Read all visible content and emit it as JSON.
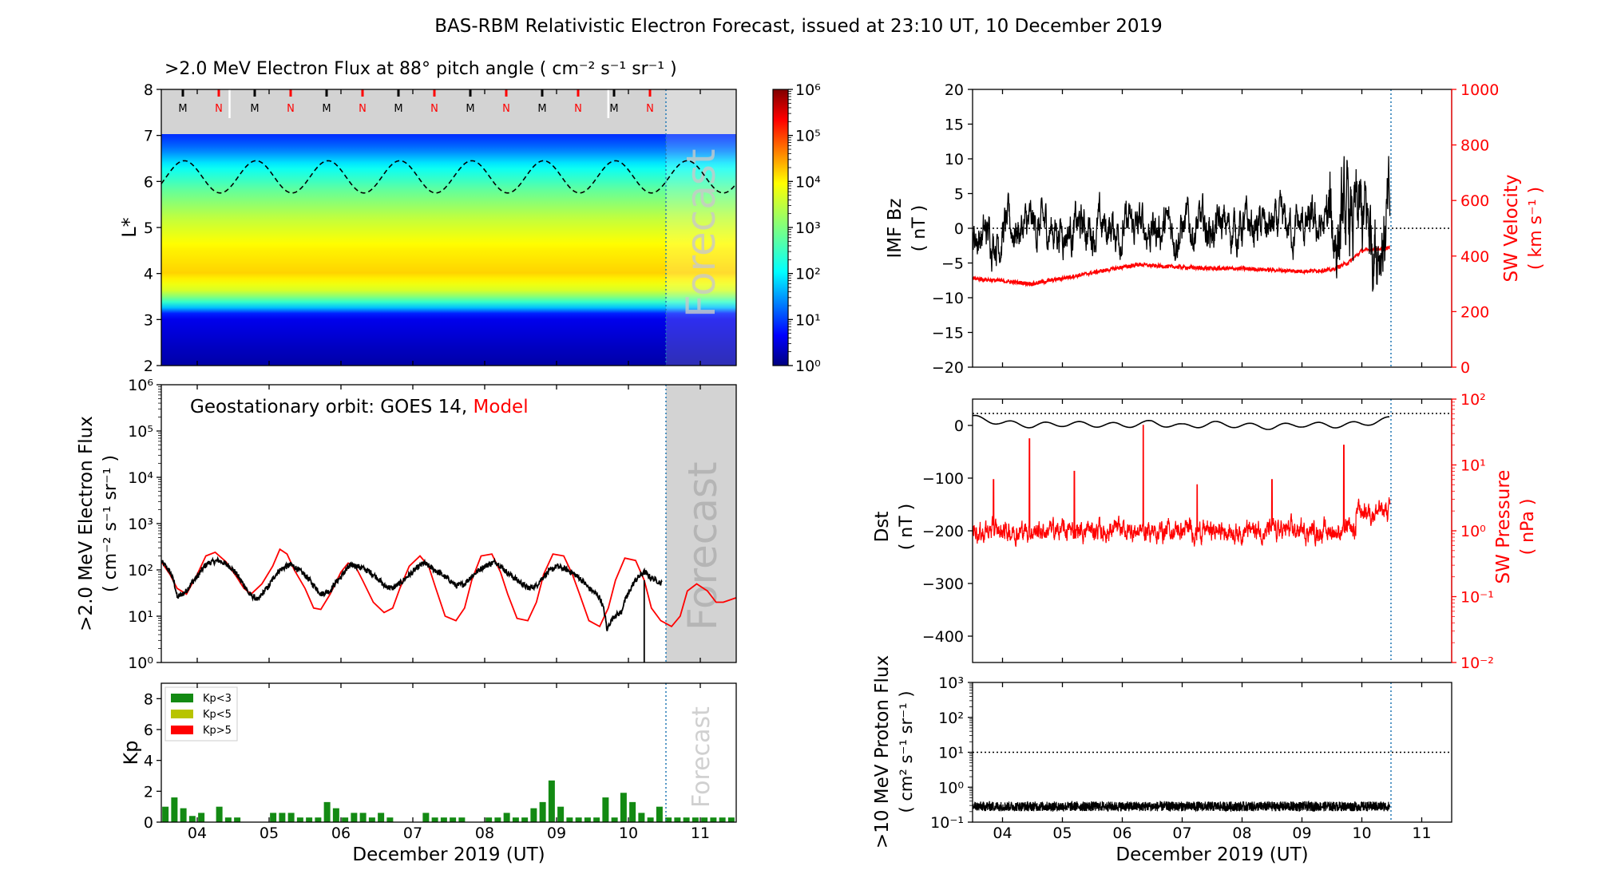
{
  "figure_title": "BAS-RBM Relativistic Electron Forecast, issued at 23:10 UT, 10 December 2019",
  "colors": {
    "red": "#ff0000",
    "black": "#000000",
    "green": "#138a13",
    "olive": "#b8c400",
    "grey": "#d3d3d3",
    "vline": "#1f77b4"
  },
  "chart_data": [
    {
      "id": "flux_map",
      "type": "heatmap",
      "title": ">2.0 MeV Electron Flux at 88° pitch angle ( cm⁻² s⁻¹ sr⁻¹ )",
      "ylabel": "L*",
      "xlim": [
        3.5,
        11.5
      ],
      "ylim": [
        2,
        8
      ],
      "yticks": [
        "2",
        "3",
        "4",
        "5",
        "6",
        "7",
        "8"
      ],
      "forecast_label": "Forecast",
      "forecast_start": 10.47,
      "colorbar_ticks": [
        "10⁰",
        "10¹",
        "10²",
        "10³",
        "10⁴",
        "10⁵",
        "10⁶"
      ],
      "orbit_markers": {
        "labels": [
          "M",
          "N",
          "M",
          "N",
          "M",
          "N",
          "M",
          "N",
          "M",
          "N",
          "M",
          "N",
          "M",
          "N"
        ],
        "x": [
          3.8,
          4.3,
          4.8,
          5.3,
          5.8,
          6.3,
          6.8,
          7.3,
          7.8,
          8.3,
          8.8,
          9.3,
          9.8,
          10.3
        ]
      },
      "flux_profile": {
        "L": [
          2.0,
          3.1,
          3.3,
          3.6,
          4.0,
          4.6,
          5.2,
          5.8,
          6.3,
          6.7,
          7.0
        ],
        "log_flux": [
          0.2,
          0.6,
          2.0,
          3.6,
          4.2,
          4.0,
          3.5,
          2.8,
          2.1,
          1.3,
          0.9
        ]
      },
      "dashed_line": {
        "name": "",
        "period_days": 1.0,
        "mean_L": 6.1,
        "amplitude": 0.35
      }
    },
    {
      "id": "geo_flux",
      "type": "line",
      "annotation_prefix": "Geostationary orbit:   GOES 14,",
      "annotation_model": "Model",
      "ylabel_lines": [
        ">2.0 MeV Electron Flux",
        "( cm⁻² s⁻¹ sr⁻¹ )"
      ],
      "yscale": "log",
      "ylim": [
        1,
        1000000
      ],
      "yticks": [
        "10⁰",
        "10¹",
        "10²",
        "10³",
        "10⁴",
        "10⁵",
        "10⁶"
      ],
      "xlim": [
        3.5,
        11.5
      ],
      "forecast_label": "Forecast",
      "series": [
        {
          "name": "GOES 14",
          "color": "#000000",
          "x": [
            3.5,
            3.62,
            3.72,
            3.85,
            4.0,
            4.15,
            4.3,
            4.45,
            4.6,
            4.72,
            4.85,
            5.0,
            5.15,
            5.3,
            5.45,
            5.6,
            5.72,
            5.85,
            6.0,
            6.15,
            6.3,
            6.45,
            6.6,
            6.72,
            6.85,
            7.0,
            7.15,
            7.3,
            7.45,
            7.6,
            7.72,
            7.85,
            8.0,
            8.15,
            8.3,
            8.45,
            8.6,
            8.72,
            8.85,
            9.0,
            9.15,
            9.3,
            9.45,
            9.6,
            9.7,
            9.8,
            9.9,
            10.0,
            10.1,
            10.22,
            10.3,
            10.47
          ],
          "y": [
            150,
            90,
            25,
            35,
            70,
            140,
            160,
            120,
            60,
            30,
            22,
            45,
            100,
            130,
            90,
            50,
            30,
            35,
            70,
            130,
            110,
            80,
            45,
            40,
            55,
            90,
            140,
            100,
            70,
            45,
            50,
            80,
            120,
            150,
            90,
            60,
            40,
            45,
            80,
            120,
            100,
            70,
            40,
            25,
            5,
            10,
            12,
            30,
            60,
            90,
            70,
            50
          ]
        },
        {
          "name": "Model",
          "color": "#ff0000",
          "x": [
            3.5,
            3.62,
            3.72,
            3.85,
            4.0,
            4.12,
            4.25,
            4.4,
            4.55,
            4.65,
            4.75,
            4.9,
            5.05,
            5.15,
            5.25,
            5.35,
            5.5,
            5.62,
            5.72,
            5.85,
            6.0,
            6.1,
            6.2,
            6.3,
            6.45,
            6.6,
            6.72,
            6.82,
            6.95,
            7.1,
            7.22,
            7.32,
            7.45,
            7.6,
            7.72,
            7.82,
            7.95,
            8.1,
            8.22,
            8.32,
            8.45,
            8.6,
            8.72,
            8.82,
            8.95,
            9.1,
            9.22,
            9.32,
            9.45,
            9.6,
            9.72,
            9.82,
            9.95,
            10.1,
            10.22,
            10.32,
            10.45,
            10.6,
            10.72,
            10.82,
            10.95,
            11.1,
            11.22,
            11.32,
            11.5
          ],
          "y": [
            150,
            80,
            40,
            30,
            80,
            200,
            240,
            150,
            70,
            40,
            30,
            50,
            120,
            280,
            220,
            100,
            40,
            15,
            14,
            30,
            90,
            140,
            120,
            60,
            20,
            12,
            15,
            40,
            120,
            200,
            120,
            40,
            10,
            8,
            15,
            60,
            200,
            220,
            90,
            30,
            9,
            8,
            20,
            80,
            220,
            200,
            80,
            30,
            8,
            6,
            15,
            60,
            180,
            160,
            60,
            15,
            8,
            6,
            10,
            35,
            50,
            35,
            20,
            20,
            25
          ]
        }
      ]
    },
    {
      "id": "kp",
      "type": "bar",
      "ylabel": "Kp",
      "ylim": [
        0,
        9
      ],
      "yticks": [
        "0",
        "2",
        "4",
        "6",
        "8"
      ],
      "xlim": [
        3.5,
        11.5
      ],
      "forecast_label": "Forecast",
      "legend": [
        "Kp<3",
        "Kp<5",
        "Kp>5"
      ],
      "legend_loc": "upper left",
      "bar_width_days": 0.1,
      "x": [
        3.5625,
        3.6875,
        3.8125,
        3.9375,
        4.0625,
        4.1875,
        4.3125,
        4.4375,
        4.5625,
        4.6875,
        4.8125,
        4.9375,
        5.0625,
        5.1875,
        5.3125,
        5.4375,
        5.5625,
        5.6875,
        5.8125,
        5.9375,
        6.0625,
        6.1875,
        6.3125,
        6.4375,
        6.5625,
        6.6875,
        6.8125,
        6.9375,
        7.0625,
        7.1875,
        7.3125,
        7.4375,
        7.5625,
        7.6875,
        7.8125,
        7.9375,
        8.0625,
        8.1875,
        8.3125,
        8.4375,
        8.5625,
        8.6875,
        8.8125,
        8.9375,
        9.0625,
        9.1875,
        9.3125,
        9.4375,
        9.5625,
        9.6875,
        9.8125,
        9.9375,
        10.0625,
        10.1875,
        10.3125,
        10.4375,
        10.5625,
        10.6875,
        10.8125,
        10.9375,
        11.0625,
        11.1875,
        11.3125,
        11.4375
      ],
      "values": [
        1.0,
        1.6,
        0.9,
        0.4,
        0.6,
        0.0,
        1.0,
        0.3,
        0.3,
        0.0,
        0.0,
        0.0,
        0.6,
        0.6,
        0.6,
        0.3,
        0.3,
        0.3,
        1.3,
        0.9,
        0.3,
        0.6,
        0.6,
        0.3,
        0.6,
        0.3,
        0.0,
        0.0,
        0.0,
        0.6,
        0.3,
        0.3,
        0.3,
        0.3,
        0.0,
        0.0,
        0.3,
        0.3,
        0.6,
        0.3,
        0.3,
        0.9,
        1.3,
        2.7,
        1.0,
        0.3,
        0.3,
        0.3,
        0.3,
        1.6,
        0.3,
        1.9,
        1.3,
        0.6,
        0.3,
        1.0,
        0.3,
        0.3,
        0.3,
        0.3,
        0.3,
        0.3,
        0.3,
        0.3
      ]
    },
    {
      "id": "imf_sw",
      "type": "line",
      "ylabel_lines": [
        "IMF Bz",
        "( nT )"
      ],
      "y2label_lines": [
        "SW Velocity",
        "( km s⁻¹ )"
      ],
      "ylim": [
        -20,
        20
      ],
      "y2lim": [
        0,
        1000
      ],
      "yticks": [
        "−20",
        "−15",
        "−10",
        "−5",
        "0",
        "5",
        "10",
        "15",
        "20"
      ],
      "y2ticks": [
        "0",
        "200",
        "400",
        "600",
        "800",
        "1000"
      ],
      "xlim": [
        3.5,
        11.5
      ],
      "series": [
        {
          "name": "IMF Bz",
          "color": "#000000",
          "axis": "left",
          "mean": 0.0,
          "noise": 2.5,
          "range": [
            3.5,
            10.47
          ]
        },
        {
          "name": "SW Velocity",
          "color": "#ff0000",
          "axis": "right",
          "x": [
            3.5,
            4.0,
            4.5,
            5.0,
            5.5,
            6.0,
            6.3,
            6.5,
            7.0,
            7.5,
            8.0,
            8.5,
            9.0,
            9.5,
            9.8,
            10.0,
            10.47
          ],
          "y": [
            320,
            310,
            300,
            320,
            340,
            360,
            370,
            365,
            360,
            355,
            355,
            350,
            345,
            350,
            380,
            420,
            430
          ]
        }
      ]
    },
    {
      "id": "dst_pressure",
      "type": "line",
      "ylabel_lines": [
        "Dst",
        "( nT )"
      ],
      "y2label_lines": [
        "SW Pressure",
        "( nPa )"
      ],
      "ylim": [
        -450,
        50
      ],
      "y2lim": [
        0.01,
        100
      ],
      "yticks": [
        "−400",
        "−300",
        "−200",
        "−100",
        "0"
      ],
      "y2ticks": [
        "10⁻²",
        "10⁻¹",
        "10⁰",
        "10¹",
        "10²"
      ],
      "xlim": [
        3.5,
        11.5
      ],
      "series": [
        {
          "name": "Dst",
          "color": "#000000",
          "axis": "left",
          "x": [
            3.5,
            4.0,
            4.5,
            5.0,
            5.5,
            6.0,
            6.5,
            7.0,
            7.5,
            8.0,
            8.5,
            9.0,
            9.5,
            10.0,
            10.47
          ],
          "y": [
            15,
            5,
            0,
            3,
            2,
            0,
            5,
            -2,
            3,
            0,
            -3,
            2,
            0,
            3,
            12
          ]
        },
        {
          "name": "SW Pressure",
          "color": "#ff0000",
          "axis": "right",
          "log_mean": 0.0,
          "spikes_x": [
            3.85,
            4.45,
            5.2,
            6.35,
            7.25,
            8.5,
            9.7
          ],
          "spikes_v": [
            6,
            25,
            8,
            40,
            5,
            6,
            20
          ],
          "range": [
            3.5,
            10.47
          ]
        }
      ]
    },
    {
      "id": "proton",
      "type": "line",
      "ylabel_lines": [
        ">10 MeV Proton Flux",
        "( cm² s⁻¹ sr⁻¹ )"
      ],
      "xlabel": "December 2019 (UT)",
      "yscale": "log",
      "ylim": [
        0.1,
        1000
      ],
      "yticks": [
        "10⁻¹",
        "10⁰",
        "10¹",
        "10²",
        "10³"
      ],
      "threshold": 10,
      "xlim": [
        3.5,
        11.5
      ],
      "series": [
        {
          "name": ">10 MeV Proton Flux",
          "color": "#000000",
          "log_mean": -0.55,
          "range": [
            3.5,
            10.47
          ]
        }
      ]
    }
  ],
  "xaxis": {
    "tick_labels": [
      "04",
      "05",
      "06",
      "07",
      "08",
      "09",
      "10",
      "11"
    ],
    "tick_values": [
      4,
      5,
      6,
      7,
      8,
      9,
      10,
      11
    ],
    "xlabel": "December 2019 (UT)"
  }
}
